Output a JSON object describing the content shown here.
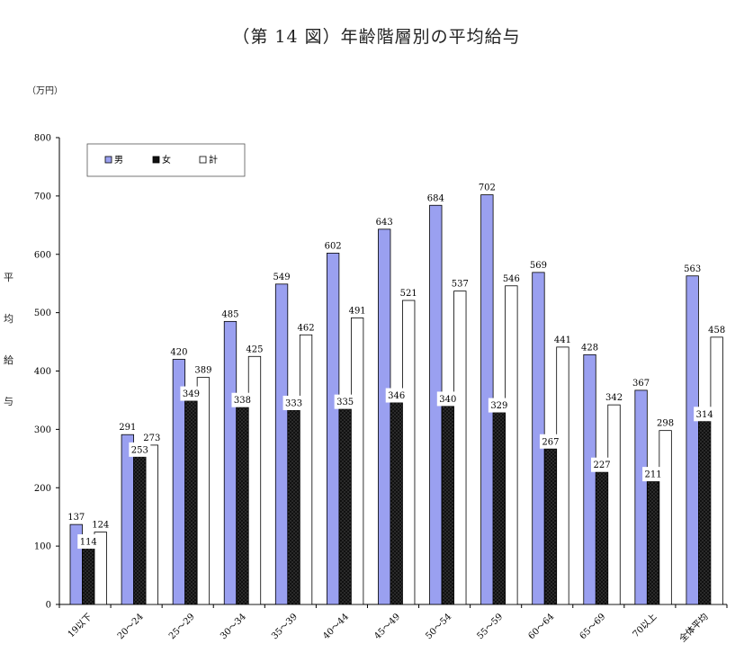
{
  "title": "（第 14 図）年齢階層別の平均給与",
  "unit_label": "（万円）",
  "chart_data": {
    "type": "bar",
    "title": "（第 14 図）年齢階層別の平均給与",
    "ylabel": "平均給与",
    "ylabel_chars": [
      "平",
      "均",
      "給",
      "与"
    ],
    "ylim": [
      0,
      800
    ],
    "yticks": [
      0,
      100,
      200,
      300,
      400,
      500,
      600,
      700,
      800
    ],
    "legend_position": "top-left",
    "categories": [
      "19以下",
      "20～24",
      "25～29",
      "30～34",
      "35～39",
      "40～44",
      "45～49",
      "50～54",
      "55～59",
      "60～64",
      "65～69",
      "70以上",
      "全体平均"
    ],
    "series": [
      {
        "name": "男",
        "color": "#9aa0f0",
        "values": [
          137,
          291,
          420,
          485,
          549,
          602,
          643,
          684,
          702,
          569,
          428,
          367,
          563
        ]
      },
      {
        "name": "女",
        "color": "#111111",
        "values": [
          114,
          253,
          349,
          338,
          333,
          335,
          346,
          340,
          329,
          267,
          227,
          211,
          314
        ]
      },
      {
        "name": "計",
        "color": "#ffffff",
        "values": [
          124,
          273,
          389,
          425,
          462,
          491,
          521,
          537,
          546,
          441,
          342,
          298,
          458
        ]
      }
    ]
  }
}
